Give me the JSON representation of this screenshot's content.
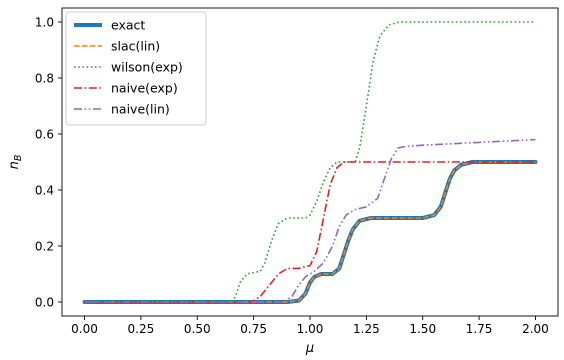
{
  "chart_data": {
    "type": "line",
    "title": "",
    "xlabel": "μ",
    "ylabel": "n",
    "ylabel_sub": "B",
    "xlim": [
      -0.1,
      2.1
    ],
    "ylim": [
      -0.05,
      1.05
    ],
    "xticks": [
      0.0,
      0.25,
      0.5,
      0.75,
      1.0,
      1.25,
      1.5,
      1.75,
      2.0
    ],
    "xtick_labels": [
      "0.00",
      "0.25",
      "0.50",
      "0.75",
      "1.00",
      "1.25",
      "1.50",
      "1.75",
      "2.00"
    ],
    "yticks": [
      0.0,
      0.2,
      0.4,
      0.6,
      0.8,
      1.0
    ],
    "ytick_labels": [
      "0.0",
      "0.2",
      "0.4",
      "0.6",
      "0.8",
      "1.0"
    ],
    "grid": false,
    "legend_position": "top-left",
    "series": [
      {
        "name": "exact",
        "color": "#1f77b4",
        "style": "solid",
        "width": 4,
        "x": [
          0.0,
          0.9,
          0.95,
          0.98,
          1.0,
          1.02,
          1.05,
          1.1,
          1.13,
          1.15,
          1.17,
          1.19,
          1.22,
          1.27,
          1.3,
          1.5,
          1.55,
          1.58,
          1.6,
          1.62,
          1.64,
          1.67,
          1.72,
          2.0
        ],
        "y": [
          0.0,
          0.0,
          0.005,
          0.03,
          0.07,
          0.09,
          0.1,
          0.1,
          0.12,
          0.17,
          0.22,
          0.26,
          0.29,
          0.3,
          0.3,
          0.3,
          0.31,
          0.34,
          0.39,
          0.44,
          0.47,
          0.49,
          0.5,
          0.5
        ]
      },
      {
        "name": "slac(lin)",
        "color": "#ff7f0e",
        "style": "dashed",
        "width": 1.6,
        "x": [
          0.0,
          0.9,
          0.95,
          0.98,
          1.0,
          1.02,
          1.05,
          1.1,
          1.13,
          1.15,
          1.17,
          1.19,
          1.22,
          1.27,
          1.3,
          1.5,
          1.55,
          1.58,
          1.6,
          1.62,
          1.64,
          1.67,
          1.72,
          2.0
        ],
        "y": [
          0.0,
          0.0,
          0.005,
          0.03,
          0.07,
          0.09,
          0.1,
          0.1,
          0.12,
          0.17,
          0.22,
          0.26,
          0.29,
          0.3,
          0.3,
          0.3,
          0.31,
          0.34,
          0.39,
          0.44,
          0.47,
          0.49,
          0.5,
          0.5
        ]
      },
      {
        "name": "wilson(exp)",
        "color": "#2ca02c",
        "style": "dotted",
        "width": 1.6,
        "x": [
          0.0,
          0.65,
          0.67,
          0.69,
          0.72,
          0.78,
          0.8,
          0.83,
          0.86,
          0.9,
          0.95,
          0.98,
          1.0,
          1.03,
          1.06,
          1.09,
          1.12,
          1.2,
          1.22,
          1.25,
          1.28,
          1.31,
          1.35,
          1.4,
          2.0
        ],
        "y": [
          0.0,
          0.0,
          0.02,
          0.07,
          0.1,
          0.11,
          0.14,
          0.22,
          0.28,
          0.3,
          0.3,
          0.3,
          0.31,
          0.36,
          0.43,
          0.48,
          0.5,
          0.5,
          0.55,
          0.7,
          0.86,
          0.95,
          0.99,
          1.0,
          1.0
        ]
      },
      {
        "name": "naive(exp)",
        "color": "#d62728",
        "style": "dashdot",
        "width": 1.6,
        "x": [
          0.0,
          0.74,
          0.78,
          0.82,
          0.86,
          0.9,
          0.95,
          1.0,
          1.03,
          1.06,
          1.09,
          1.12,
          1.15,
          1.2,
          2.0
        ],
        "y": [
          0.0,
          0.0,
          0.02,
          0.06,
          0.1,
          0.12,
          0.12,
          0.13,
          0.18,
          0.3,
          0.42,
          0.48,
          0.5,
          0.5,
          0.5
        ]
      },
      {
        "name": "naive(lin)",
        "color": "#9467bd",
        "style": "dashdotdot",
        "width": 1.6,
        "x": [
          0.0,
          0.88,
          0.92,
          0.95,
          0.98,
          1.02,
          1.06,
          1.1,
          1.13,
          1.16,
          1.2,
          1.25,
          1.3,
          1.33,
          1.36,
          1.39,
          1.42,
          1.5,
          1.75,
          2.0
        ],
        "y": [
          0.0,
          0.0,
          0.02,
          0.06,
          0.09,
          0.11,
          0.14,
          0.2,
          0.27,
          0.31,
          0.33,
          0.34,
          0.37,
          0.44,
          0.51,
          0.55,
          0.555,
          0.56,
          0.57,
          0.58
        ]
      }
    ]
  }
}
